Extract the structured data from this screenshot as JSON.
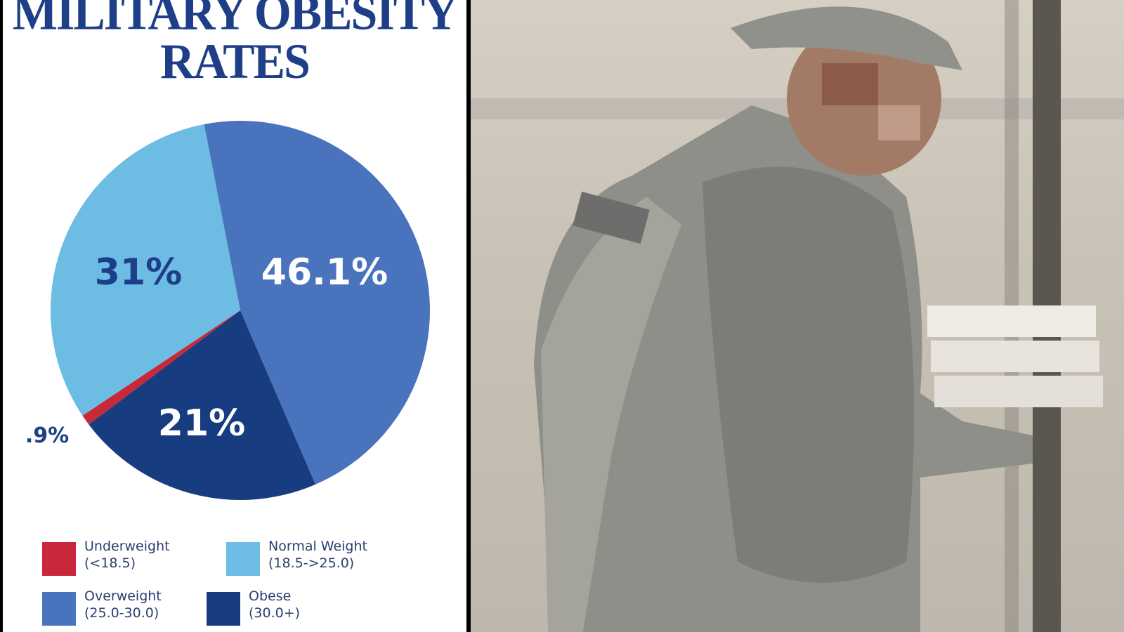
{
  "chart_data": {
    "type": "pie",
    "title": "MILITARY OBESITY RATES",
    "slices": [
      {
        "name": "Overweight",
        "range": "(25.0-30.0)",
        "value": 46.1,
        "label": "46.1%",
        "color": "#4a73bd",
        "label_color": "#ffffff"
      },
      {
        "name": "Obese",
        "range": "(30.0+)",
        "value": 21,
        "label": "21%",
        "color": "#173d80",
        "label_color": "#ffffff"
      },
      {
        "name": "Underweight",
        "range": "(<18.5)",
        "value": 0.9,
        "label": ".9%",
        "color": "#c8283a",
        "label_color": "#1e3f87"
      },
      {
        "name": "Normal Weight",
        "range": "(18.5->25.0)",
        "value": 31,
        "label": "31%",
        "color": "#6cbce4",
        "label_color": "#1e3f87"
      }
    ],
    "legend_order": [
      2,
      3,
      0,
      1
    ],
    "legend_placement": "bottom"
  },
  "photo": {
    "subject": "soldier-carrying-pizza-boxes"
  }
}
